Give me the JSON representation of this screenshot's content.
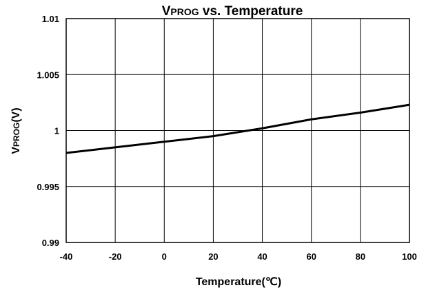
{
  "chart_data": {
    "type": "line",
    "title": {
      "main": "V",
      "sub": "PROG",
      "rest": " vs. Temperature"
    },
    "xlabel": "Temperature(℃)",
    "ylabel": {
      "main": "V",
      "sub": "PROG",
      "rest": "(V)"
    },
    "xlim": [
      -40,
      100
    ],
    "ylim": [
      0.99,
      1.01
    ],
    "xticks": [
      -40,
      -20,
      0,
      20,
      40,
      60,
      80,
      100
    ],
    "yticks": [
      0.99,
      0.995,
      1,
      1.005,
      1.01
    ],
    "xtick_labels": [
      "-40",
      "-20",
      "0",
      "20",
      "40",
      "60",
      "80",
      "100"
    ],
    "ytick_labels": [
      "0.99",
      "0.995",
      "1",
      "1.005",
      "1.01"
    ],
    "grid": true,
    "series": [
      {
        "x": [
          -40,
          -20,
          0,
          20,
          40,
          60,
          80,
          100
        ],
        "y": [
          0.998,
          0.9985,
          0.999,
          0.9995,
          1.0002,
          1.001,
          1.0016,
          1.0023
        ]
      }
    ],
    "line_color": "#000000",
    "grid_color": "#000000"
  }
}
